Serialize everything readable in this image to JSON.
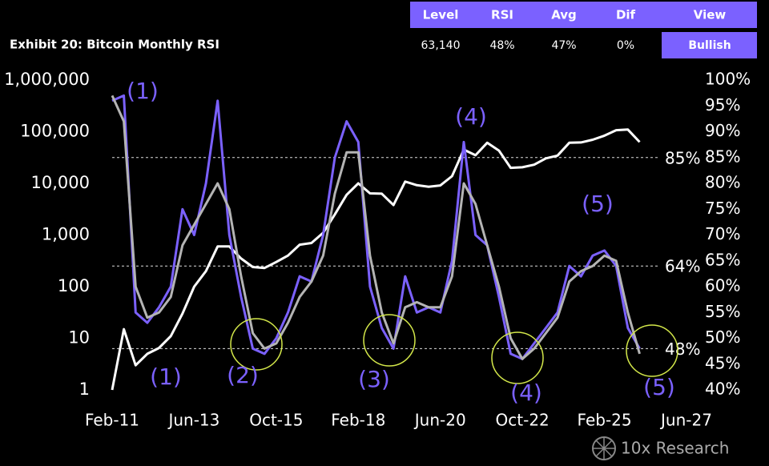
{
  "chart_data": {
    "type": "line",
    "title": "Exhibit 20: Bitcoin Monthly RSI",
    "header": {
      "columns": [
        "Level",
        "RSI",
        "Avg",
        "Dif",
        "View"
      ],
      "values": [
        "63,140",
        "48%",
        "47%",
        "0%",
        "Bullish"
      ]
    },
    "source": "10x Research",
    "x": [
      "2011-02",
      "2011-06",
      "2011-10",
      "2012-02",
      "2012-06",
      "2012-10",
      "2013-02",
      "2013-06",
      "2013-10",
      "2014-02",
      "2014-06",
      "2014-10",
      "2015-02",
      "2015-06",
      "2015-10",
      "2016-02",
      "2016-06",
      "2016-10",
      "2017-02",
      "2017-06",
      "2017-10",
      "2018-02",
      "2018-06",
      "2018-10",
      "2019-02",
      "2019-06",
      "2019-10",
      "2020-02",
      "2020-06",
      "2020-10",
      "2021-02",
      "2021-06",
      "2021-10",
      "2022-02",
      "2022-06",
      "2022-10",
      "2023-02",
      "2023-06",
      "2023-10",
      "2024-02",
      "2024-06",
      "2024-10",
      "2025-02",
      "2025-06",
      "2025-10",
      "2026-02"
    ],
    "series": [
      {
        "name": "Bitcoin",
        "color": "#ffffff",
        "axis": "y",
        "values": [
          1,
          15,
          3,
          5,
          6.5,
          11,
          30,
          100,
          200,
          600,
          600,
          350,
          240,
          230,
          300,
          400,
          650,
          700,
          1100,
          2500,
          6000,
          10000,
          6400,
          6300,
          3800,
          10800,
          9200,
          8600,
          9100,
          13800,
          45000,
          35000,
          61000,
          43000,
          20000,
          20500,
          23000,
          30500,
          34500,
          61000,
          62000,
          70000,
          84000,
          107000,
          110000,
          63140
        ]
      },
      {
        "name": "RSI",
        "color": "#7b61ff",
        "axis": "y2",
        "values": [
          96,
          97,
          55,
          53,
          56,
          60,
          75,
          70,
          80,
          96,
          70,
          58,
          48,
          47,
          50,
          55,
          62,
          61,
          70,
          85,
          92,
          88,
          60,
          52,
          48,
          62,
          55,
          56,
          55,
          65,
          88,
          70,
          68,
          58,
          47,
          46,
          49,
          52,
          55,
          64,
          62,
          66,
          67,
          64,
          52,
          48
        ]
      },
      {
        "name": "Avg",
        "color": "#b4b4b4",
        "axis": "y2",
        "values": [
          97,
          92,
          60,
          54,
          55,
          58,
          68,
          72,
          76,
          80,
          75,
          62,
          51,
          48,
          49,
          53,
          58,
          61,
          66,
          78,
          86,
          86,
          66,
          55,
          49,
          56,
          57,
          56,
          56,
          62,
          80,
          76,
          68,
          60,
          50,
          46,
          48,
          51,
          54,
          61,
          63,
          64,
          66,
          65,
          55,
          47
        ]
      }
    ],
    "xlim": [
      "2011-02",
      "2027-06"
    ],
    "xticks": [
      {
        "value": "2011-02",
        "label": "Feb-11"
      },
      {
        "value": "2013-06",
        "label": "Jun-13"
      },
      {
        "value": "2015-10",
        "label": "Oct-15"
      },
      {
        "value": "2018-02",
        "label": "Feb-18"
      },
      {
        "value": "2020-06",
        "label": "Jun-20"
      },
      {
        "value": "2022-10",
        "label": "Oct-22"
      },
      {
        "value": "2025-02",
        "label": "Feb-25"
      },
      {
        "value": "2027-06",
        "label": "Jun-27"
      }
    ],
    "log_scale": true,
    "ylim": [
      1,
      1000000
    ],
    "yticks": [
      1,
      10,
      100,
      {
        "value": 1000,
        "label": "1,000"
      },
      {
        "value": 10000,
        "label": "10,000"
      },
      {
        "value": 100000,
        "label": "100,000"
      },
      {
        "value": 1000000,
        "label": "1,000,000"
      }
    ],
    "y2lim": [
      40,
      100
    ],
    "y2ticks": [
      {
        "value": 40,
        "label": "40%"
      },
      {
        "value": 45,
        "label": "45%"
      },
      {
        "value": 50,
        "label": "50%"
      },
      {
        "value": 55,
        "label": "55%"
      },
      {
        "value": 60,
        "label": "60%"
      },
      {
        "value": 65,
        "label": "65%"
      },
      {
        "value": 70,
        "label": "70%"
      },
      {
        "value": 75,
        "label": "75%"
      },
      {
        "value": 80,
        "label": "80%"
      },
      {
        "value": 85,
        "label": "85%"
      },
      {
        "value": 90,
        "label": "90%"
      },
      {
        "value": 95,
        "label": "95%"
      },
      {
        "value": 100,
        "label": "100%"
      }
    ],
    "reference_lines": [
      {
        "value": 85,
        "label": "85%"
      },
      {
        "value": 64,
        "label": "64%"
      },
      {
        "value": 48,
        "label": "48%"
      }
    ],
    "annotations": [
      "(1)",
      "(1)",
      "(2)",
      "(3)",
      "(4)",
      "(4)",
      "(5)",
      "(5)"
    ]
  }
}
